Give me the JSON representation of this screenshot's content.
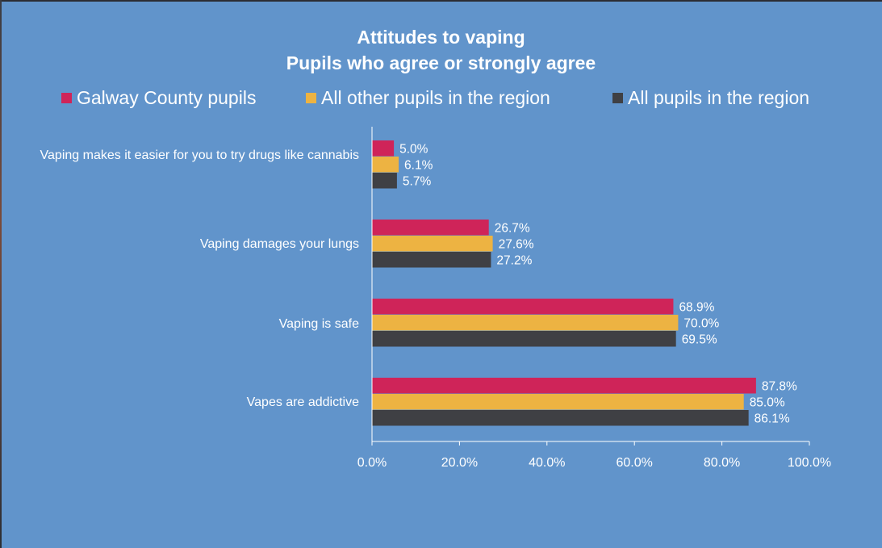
{
  "chart_data": {
    "type": "bar",
    "orientation": "horizontal",
    "title": "Attitudes to vaping",
    "subtitle": "Pupils who agree or strongly agree",
    "categories": [
      "Vaping makes it easier for you to try drugs like cannabis",
      "Vaping damages your lungs",
      "Vaping is safe",
      "Vapes are addictive"
    ],
    "series": [
      {
        "name": "Galway County pupils",
        "color": "#cf2459",
        "values": [
          5.0,
          26.7,
          68.9,
          87.8
        ],
        "labels": [
          "5.0%",
          "26.7%",
          "68.9%",
          "87.8%"
        ]
      },
      {
        "name": "All other pupils in the region",
        "color": "#edb342",
        "values": [
          6.1,
          27.6,
          70.0,
          85.0
        ],
        "labels": [
          "6.1%",
          "27.6%",
          "70.0%",
          "85.0%"
        ]
      },
      {
        "name": "All pupils in the region",
        "color": "#3f4044",
        "values": [
          5.7,
          27.2,
          69.5,
          86.1
        ],
        "labels": [
          "5.7%",
          "27.2%",
          "69.5%",
          "86.1%"
        ]
      }
    ],
    "xlim": [
      0,
      100
    ],
    "xticks": [
      "0.0%",
      "20.0%",
      "40.0%",
      "60.0%",
      "80.0%",
      "100.0%"
    ],
    "xlabel": "",
    "ylabel": "",
    "grid": false,
    "legend_position": "top"
  },
  "colors": {
    "background": "#6194cb",
    "text": "#ffffff",
    "axis": "#ffffff"
  }
}
